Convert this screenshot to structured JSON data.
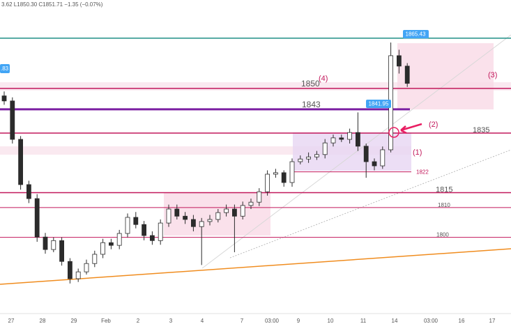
{
  "chart_data": {
    "type": "candlestick",
    "header": "3.62 L1850.30 C1851.71 −1.35 (−0.07%)",
    "x_labels": [
      "27",
      "28",
      "29",
      "Feb",
      "2",
      "3",
      "4",
      "7",
      "03:00",
      "9",
      "10",
      "11",
      "14",
      "03:00",
      "16",
      "17"
    ],
    "open": [
      1847.5,
      1845.8,
      1832.9,
      1817.7,
      1813.0,
      1800.1,
      1795.9,
      1798.9,
      1791.9,
      1786.1,
      1788.4,
      1791.2,
      1794.3,
      1798.2,
      1797.3,
      1801.3,
      1806.7,
      1804.3,
      1800.6,
      1798.9,
      1804.8,
      1809.5,
      1807.1,
      1806.0,
      1803.6,
      1805.3,
      1806.0,
      1808.3,
      1809.5,
      1807.1,
      1810.7,
      1811.8,
      1815.3,
      1821.2,
      1821.7,
      1818.4,
      1825.4,
      1826.3,
      1827.0,
      1827.8,
      1831.7,
      1833.4,
      1832.9,
      1835.2,
      1830.6,
      1825.4,
      1824.0,
      1829.4,
      1861.0,
      1857.5
    ],
    "high": [
      1849.0,
      1847.0,
      1834.0,
      1819.0,
      1814.5,
      1801.5,
      1800.0,
      1800.0,
      1793.0,
      1789.5,
      1792.5,
      1795.5,
      1799.5,
      1799.5,
      1802.5,
      1808.0,
      1808.5,
      1805.5,
      1802.0,
      1806.0,
      1811.0,
      1811.0,
      1808.5,
      1807.5,
      1806.5,
      1807.5,
      1809.5,
      1811.0,
      1811.0,
      1812.0,
      1813.0,
      1816.5,
      1822.5,
      1823.0,
      1822.5,
      1826.5,
      1827.5,
      1828.5,
      1829.0,
      1833.0,
      1834.5,
      1834.5,
      1836.5,
      1841.95,
      1831.5,
      1826.5,
      1830.5,
      1865.43,
      1863.0,
      1858.5
    ],
    "low": [
      1844.5,
      1831.5,
      1816.0,
      1811.5,
      1798.5,
      1794.5,
      1795.0,
      1790.5,
      1784.5,
      1785.0,
      1787.5,
      1790.0,
      1793.0,
      1796.0,
      1796.0,
      1800.0,
      1803.0,
      1799.0,
      1797.5,
      1797.5,
      1803.5,
      1806.0,
      1804.5,
      1802.0,
      1790.7,
      1804.0,
      1805.0,
      1807.0,
      1795.0,
      1806.0,
      1809.5,
      1810.5,
      1814.0,
      1820.0,
      1817.0,
      1817.0,
      1824.5,
      1825.0,
      1826.0,
      1826.5,
      1830.5,
      1832.0,
      1831.5,
      1829.0,
      1820.0,
      1822.5,
      1823.0,
      1828.5,
      1855.0,
      1850.5
    ],
    "close": [
      1845.8,
      1832.9,
      1817.7,
      1813.0,
      1800.1,
      1795.9,
      1798.9,
      1791.9,
      1786.1,
      1788.4,
      1791.2,
      1794.3,
      1798.2,
      1797.3,
      1801.3,
      1806.7,
      1804.3,
      1800.6,
      1798.9,
      1804.8,
      1809.5,
      1807.1,
      1806.0,
      1803.6,
      1805.3,
      1806.0,
      1808.3,
      1809.5,
      1807.1,
      1810.7,
      1811.8,
      1815.3,
      1821.2,
      1821.7,
      1818.4,
      1825.4,
      1826.3,
      1827.0,
      1827.8,
      1831.7,
      1833.4,
      1832.9,
      1835.2,
      1830.6,
      1825.4,
      1824.0,
      1829.4,
      1861.0,
      1857.5,
      1851.7
    ],
    "up_color": "#ffffff",
    "down_color": "#2b2b2b",
    "ylim": [
      1774.4,
      1879.7
    ],
    "levels": [
      {
        "value": 1866.9,
        "color": "#1e8f86"
      },
      {
        "value": 1850,
        "label": "1850",
        "color": "#c2185b"
      },
      {
        "value": 1843,
        "label": "1843",
        "color": "#7b1fa2"
      },
      {
        "value": 1835,
        "label": "1835",
        "color": "#c2185b"
      },
      {
        "value": 1822,
        "label": "1822",
        "color": "#c2185b"
      },
      {
        "value": 1815,
        "label": "1815",
        "color": "#c2185b"
      },
      {
        "value": 1810,
        "label": "1810",
        "color": "#c2185b"
      },
      {
        "value": 1800,
        "label": "1800",
        "color": "#c2185b"
      }
    ],
    "annotations": [
      "(1)",
      "(2)",
      "(3)",
      "(4)"
    ],
    "tag": ".83"
  }
}
